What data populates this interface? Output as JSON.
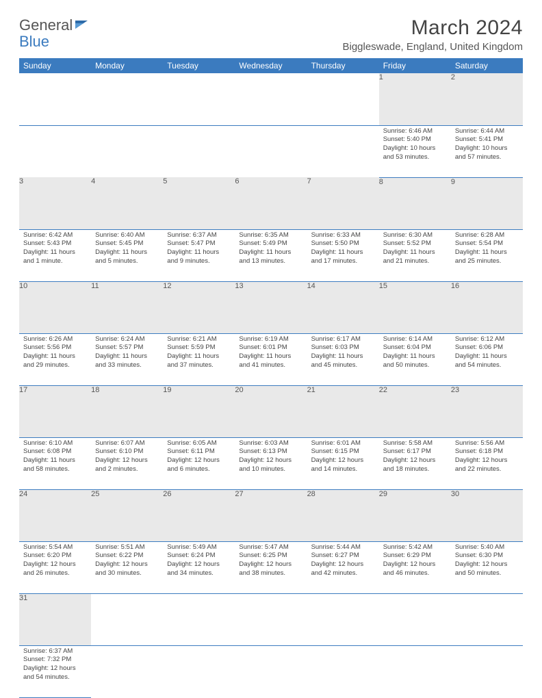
{
  "logo": {
    "part1": "General",
    "part2": "Blue"
  },
  "title": "March 2024",
  "location": "Biggleswade, England, United Kingdom",
  "weekdays": [
    "Sunday",
    "Monday",
    "Tuesday",
    "Wednesday",
    "Thursday",
    "Friday",
    "Saturday"
  ],
  "colors": {
    "header_bg": "#3b7bbf",
    "header_text": "#ffffff",
    "daynum_bg": "#e9e9e9",
    "row_border": "#3b7bbf",
    "logo_blue": "#3b7bbf",
    "logo_gray": "#555555",
    "body_text": "#444444",
    "background": "#ffffff"
  },
  "typography": {
    "month_title_fontsize": 30,
    "location_fontsize": 15,
    "weekday_fontsize": 12,
    "daynum_fontsize": 11,
    "cell_fontsize": 9.5,
    "logo_fontsize": 22
  },
  "rows": [
    [
      null,
      null,
      null,
      null,
      null,
      {
        "n": "1",
        "sr": "Sunrise: 6:46 AM",
        "ss": "Sunset: 5:40 PM",
        "d1": "Daylight: 10 hours",
        "d2": "and 53 minutes."
      },
      {
        "n": "2",
        "sr": "Sunrise: 6:44 AM",
        "ss": "Sunset: 5:41 PM",
        "d1": "Daylight: 10 hours",
        "d2": "and 57 minutes."
      }
    ],
    [
      {
        "n": "3",
        "sr": "Sunrise: 6:42 AM",
        "ss": "Sunset: 5:43 PM",
        "d1": "Daylight: 11 hours",
        "d2": "and 1 minute."
      },
      {
        "n": "4",
        "sr": "Sunrise: 6:40 AM",
        "ss": "Sunset: 5:45 PM",
        "d1": "Daylight: 11 hours",
        "d2": "and 5 minutes."
      },
      {
        "n": "5",
        "sr": "Sunrise: 6:37 AM",
        "ss": "Sunset: 5:47 PM",
        "d1": "Daylight: 11 hours",
        "d2": "and 9 minutes."
      },
      {
        "n": "6",
        "sr": "Sunrise: 6:35 AM",
        "ss": "Sunset: 5:49 PM",
        "d1": "Daylight: 11 hours",
        "d2": "and 13 minutes."
      },
      {
        "n": "7",
        "sr": "Sunrise: 6:33 AM",
        "ss": "Sunset: 5:50 PM",
        "d1": "Daylight: 11 hours",
        "d2": "and 17 minutes."
      },
      {
        "n": "8",
        "sr": "Sunrise: 6:30 AM",
        "ss": "Sunset: 5:52 PM",
        "d1": "Daylight: 11 hours",
        "d2": "and 21 minutes."
      },
      {
        "n": "9",
        "sr": "Sunrise: 6:28 AM",
        "ss": "Sunset: 5:54 PM",
        "d1": "Daylight: 11 hours",
        "d2": "and 25 minutes."
      }
    ],
    [
      {
        "n": "10",
        "sr": "Sunrise: 6:26 AM",
        "ss": "Sunset: 5:56 PM",
        "d1": "Daylight: 11 hours",
        "d2": "and 29 minutes."
      },
      {
        "n": "11",
        "sr": "Sunrise: 6:24 AM",
        "ss": "Sunset: 5:57 PM",
        "d1": "Daylight: 11 hours",
        "d2": "and 33 minutes."
      },
      {
        "n": "12",
        "sr": "Sunrise: 6:21 AM",
        "ss": "Sunset: 5:59 PM",
        "d1": "Daylight: 11 hours",
        "d2": "and 37 minutes."
      },
      {
        "n": "13",
        "sr": "Sunrise: 6:19 AM",
        "ss": "Sunset: 6:01 PM",
        "d1": "Daylight: 11 hours",
        "d2": "and 41 minutes."
      },
      {
        "n": "14",
        "sr": "Sunrise: 6:17 AM",
        "ss": "Sunset: 6:03 PM",
        "d1": "Daylight: 11 hours",
        "d2": "and 45 minutes."
      },
      {
        "n": "15",
        "sr": "Sunrise: 6:14 AM",
        "ss": "Sunset: 6:04 PM",
        "d1": "Daylight: 11 hours",
        "d2": "and 50 minutes."
      },
      {
        "n": "16",
        "sr": "Sunrise: 6:12 AM",
        "ss": "Sunset: 6:06 PM",
        "d1": "Daylight: 11 hours",
        "d2": "and 54 minutes."
      }
    ],
    [
      {
        "n": "17",
        "sr": "Sunrise: 6:10 AM",
        "ss": "Sunset: 6:08 PM",
        "d1": "Daylight: 11 hours",
        "d2": "and 58 minutes."
      },
      {
        "n": "18",
        "sr": "Sunrise: 6:07 AM",
        "ss": "Sunset: 6:10 PM",
        "d1": "Daylight: 12 hours",
        "d2": "and 2 minutes."
      },
      {
        "n": "19",
        "sr": "Sunrise: 6:05 AM",
        "ss": "Sunset: 6:11 PM",
        "d1": "Daylight: 12 hours",
        "d2": "and 6 minutes."
      },
      {
        "n": "20",
        "sr": "Sunrise: 6:03 AM",
        "ss": "Sunset: 6:13 PM",
        "d1": "Daylight: 12 hours",
        "d2": "and 10 minutes."
      },
      {
        "n": "21",
        "sr": "Sunrise: 6:01 AM",
        "ss": "Sunset: 6:15 PM",
        "d1": "Daylight: 12 hours",
        "d2": "and 14 minutes."
      },
      {
        "n": "22",
        "sr": "Sunrise: 5:58 AM",
        "ss": "Sunset: 6:17 PM",
        "d1": "Daylight: 12 hours",
        "d2": "and 18 minutes."
      },
      {
        "n": "23",
        "sr": "Sunrise: 5:56 AM",
        "ss": "Sunset: 6:18 PM",
        "d1": "Daylight: 12 hours",
        "d2": "and 22 minutes."
      }
    ],
    [
      {
        "n": "24",
        "sr": "Sunrise: 5:54 AM",
        "ss": "Sunset: 6:20 PM",
        "d1": "Daylight: 12 hours",
        "d2": "and 26 minutes."
      },
      {
        "n": "25",
        "sr": "Sunrise: 5:51 AM",
        "ss": "Sunset: 6:22 PM",
        "d1": "Daylight: 12 hours",
        "d2": "and 30 minutes."
      },
      {
        "n": "26",
        "sr": "Sunrise: 5:49 AM",
        "ss": "Sunset: 6:24 PM",
        "d1": "Daylight: 12 hours",
        "d2": "and 34 minutes."
      },
      {
        "n": "27",
        "sr": "Sunrise: 5:47 AM",
        "ss": "Sunset: 6:25 PM",
        "d1": "Daylight: 12 hours",
        "d2": "and 38 minutes."
      },
      {
        "n": "28",
        "sr": "Sunrise: 5:44 AM",
        "ss": "Sunset: 6:27 PM",
        "d1": "Daylight: 12 hours",
        "d2": "and 42 minutes."
      },
      {
        "n": "29",
        "sr": "Sunrise: 5:42 AM",
        "ss": "Sunset: 6:29 PM",
        "d1": "Daylight: 12 hours",
        "d2": "and 46 minutes."
      },
      {
        "n": "30",
        "sr": "Sunrise: 5:40 AM",
        "ss": "Sunset: 6:30 PM",
        "d1": "Daylight: 12 hours",
        "d2": "and 50 minutes."
      }
    ],
    [
      {
        "n": "31",
        "sr": "Sunrise: 6:37 AM",
        "ss": "Sunset: 7:32 PM",
        "d1": "Daylight: 12 hours",
        "d2": "and 54 minutes."
      },
      null,
      null,
      null,
      null,
      null,
      null
    ]
  ]
}
